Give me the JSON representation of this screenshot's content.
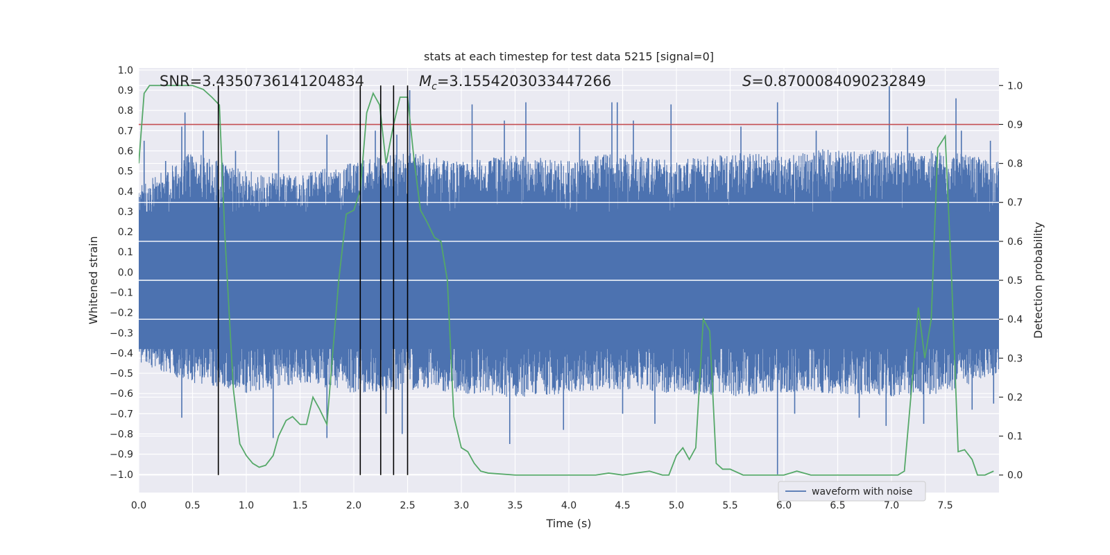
{
  "chart_data": {
    "type": "line",
    "title": "stats at each timestep for test data 5215 [signal=0]",
    "xlabel": "Time (s)",
    "ylabel": "Whitened strain",
    "y2label": "Detection probability",
    "xlim": [
      0,
      8
    ],
    "ylim": [
      -1.09,
      1.01
    ],
    "y2lim": [
      -0.045,
      1.045
    ],
    "x_ticks": [
      "0.0",
      "0.5",
      "1.0",
      "1.5",
      "2.0",
      "2.5",
      "3.0",
      "3.5",
      "4.0",
      "4.5",
      "5.0",
      "5.5",
      "6.0",
      "6.5",
      "7.0",
      "7.5"
    ],
    "y_ticks": [
      "1.0",
      "0.9",
      "0.8",
      "0.7",
      "0.6",
      "0.5",
      "0.4",
      "0.3",
      "0.2",
      "0.1",
      "0.0",
      "-0.1",
      "-0.2",
      "-0.3",
      "-0.4",
      "-0.5",
      "-0.6",
      "-0.7",
      "-0.8",
      "-0.9",
      "-1.0"
    ],
    "y2_ticks": [
      "1.0",
      "0.9",
      "0.8",
      "0.7",
      "0.6",
      "0.5",
      "0.4",
      "0.3",
      "0.2",
      "0.1",
      "0.0"
    ],
    "grid": true,
    "legend_position": "bottom-right",
    "annotations": {
      "snr": "SNR=3.4350736141204834",
      "mc_symbol": "M",
      "mc_sub": "c",
      "mc_value": "=3.1554203033447266",
      "s_symbol": "S",
      "s_value": "=0.8700084090232849"
    },
    "series": [
      {
        "name": "waveform with noise",
        "color": "#4c72b0",
        "axis": "left",
        "envelope_upper": [
          [
            0,
            0.42
          ],
          [
            0.5,
            0.6
          ],
          [
            1,
            0.5
          ],
          [
            1.5,
            0.48
          ],
          [
            2,
            0.55
          ],
          [
            2.5,
            0.6
          ],
          [
            3,
            0.55
          ],
          [
            3.5,
            0.58
          ],
          [
            4,
            0.55
          ],
          [
            4.5,
            0.6
          ],
          [
            5,
            0.55
          ],
          [
            5.5,
            0.6
          ],
          [
            6,
            0.58
          ],
          [
            6.5,
            0.62
          ],
          [
            7,
            0.6
          ],
          [
            7.5,
            0.6
          ],
          [
            8,
            0.55
          ]
        ],
        "envelope_lower": [
          [
            0,
            -0.45
          ],
          [
            0.5,
            -0.55
          ],
          [
            1,
            -0.6
          ],
          [
            1.5,
            -0.55
          ],
          [
            2,
            -0.6
          ],
          [
            2.5,
            -0.58
          ],
          [
            3,
            -0.6
          ],
          [
            3.5,
            -0.62
          ],
          [
            4,
            -0.6
          ],
          [
            4.5,
            -0.58
          ],
          [
            5,
            -0.6
          ],
          [
            5.5,
            -0.62
          ],
          [
            6,
            -0.6
          ],
          [
            6.5,
            -0.6
          ],
          [
            7,
            -0.62
          ],
          [
            7.5,
            -0.6
          ],
          [
            8,
            -0.5
          ]
        ],
        "peaks": [
          [
            0.05,
            0.65
          ],
          [
            0.25,
            0.55
          ],
          [
            0.4,
            0.72
          ],
          [
            0.43,
            0.79
          ],
          [
            0.6,
            0.7
          ],
          [
            0.9,
            0.6
          ],
          [
            1.3,
            0.7
          ],
          [
            1.75,
            0.68
          ],
          [
            2.2,
            0.7
          ],
          [
            2.25,
            0.79
          ],
          [
            2.4,
            0.68
          ],
          [
            2.52,
            0.9
          ],
          [
            3.1,
            0.83
          ],
          [
            3.4,
            0.75
          ],
          [
            3.6,
            0.84
          ],
          [
            4.1,
            0.72
          ],
          [
            4.4,
            0.84
          ],
          [
            4.45,
            0.84
          ],
          [
            4.6,
            0.75
          ],
          [
            4.95,
            0.83
          ],
          [
            5.6,
            0.72
          ],
          [
            5.94,
            0.84
          ],
          [
            6.3,
            0.7
          ],
          [
            6.98,
            0.92
          ],
          [
            7.15,
            0.72
          ],
          [
            7.6,
            0.86
          ],
          [
            7.65,
            0.7
          ],
          [
            7.92,
            0.65
          ],
          [
            0.4,
            -0.72
          ],
          [
            1.25,
            -0.82
          ],
          [
            1.75,
            -0.82
          ],
          [
            2.3,
            -0.7
          ],
          [
            2.45,
            -0.8
          ],
          [
            3.45,
            -0.85
          ],
          [
            3.95,
            -0.78
          ],
          [
            4.5,
            -0.7
          ],
          [
            4.8,
            -0.75
          ],
          [
            5.94,
            -1.0
          ],
          [
            6.1,
            -0.7
          ],
          [
            6.7,
            -0.72
          ],
          [
            6.95,
            -0.76
          ],
          [
            7.3,
            -0.75
          ],
          [
            7.75,
            -0.68
          ],
          [
            7.95,
            -0.65
          ]
        ]
      },
      {
        "name": "",
        "color": "#55a868",
        "axis": "right",
        "x": [
          0.0,
          0.05,
          0.1,
          0.2,
          0.3,
          0.4,
          0.5,
          0.6,
          0.68,
          0.75,
          0.8,
          0.88,
          0.94,
          1.0,
          1.06,
          1.12,
          1.18,
          1.25,
          1.3,
          1.37,
          1.43,
          1.5,
          1.56,
          1.62,
          1.68,
          1.75,
          1.8,
          1.86,
          1.93,
          2.0,
          2.06,
          2.12,
          2.18,
          2.24,
          2.3,
          2.37,
          2.43,
          2.5,
          2.56,
          2.62,
          2.68,
          2.75,
          2.81,
          2.87,
          2.93,
          3.0,
          3.06,
          3.12,
          3.18,
          3.25,
          3.5,
          3.75,
          4.0,
          4.25,
          4.37,
          4.5,
          4.62,
          4.75,
          4.87,
          4.93,
          5.0,
          5.06,
          5.12,
          5.18,
          5.25,
          5.31,
          5.37,
          5.43,
          5.5,
          5.62,
          5.75,
          6.0,
          6.12,
          6.25,
          6.5,
          6.75,
          7.0,
          7.06,
          7.12,
          7.18,
          7.25,
          7.31,
          7.37,
          7.43,
          7.5,
          7.56,
          7.62,
          7.68,
          7.75,
          7.8,
          7.87,
          7.95
        ],
        "y": [
          0.8,
          0.98,
          1.0,
          1.0,
          1.0,
          1.0,
          1.0,
          0.99,
          0.97,
          0.95,
          0.62,
          0.22,
          0.08,
          0.05,
          0.03,
          0.02,
          0.025,
          0.05,
          0.1,
          0.14,
          0.15,
          0.13,
          0.13,
          0.2,
          0.17,
          0.13,
          0.3,
          0.5,
          0.67,
          0.68,
          0.73,
          0.93,
          0.98,
          0.95,
          0.8,
          0.9,
          0.97,
          0.97,
          0.81,
          0.68,
          0.65,
          0.61,
          0.6,
          0.5,
          0.15,
          0.07,
          0.06,
          0.03,
          0.01,
          0.005,
          0.0,
          0.0,
          0.0,
          0.0,
          0.005,
          0.0,
          0.005,
          0.01,
          0.0,
          0.0,
          0.05,
          0.07,
          0.04,
          0.07,
          0.4,
          0.37,
          0.03,
          0.015,
          0.015,
          0.0,
          0.0,
          0.0,
          0.01,
          0.0,
          0.0,
          0.0,
          0.0,
          0.0,
          0.01,
          0.2,
          0.43,
          0.3,
          0.4,
          0.84,
          0.87,
          0.5,
          0.06,
          0.065,
          0.04,
          0.0,
          0.0,
          0.01
        ]
      },
      {
        "name": "",
        "color": "#c44e52",
        "axis": "right",
        "x": [
          0,
          8
        ],
        "y": [
          0.9,
          0.9
        ]
      }
    ],
    "vertical_lines": [
      0.74,
      2.06,
      2.25,
      2.37,
      2.5
    ]
  }
}
